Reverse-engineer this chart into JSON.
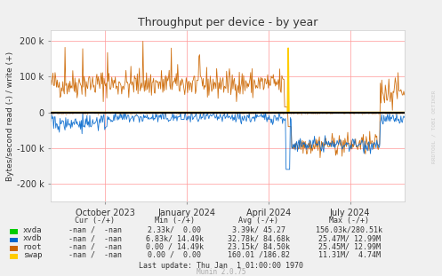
{
  "title": "Throughput per device - by year",
  "ylabel": "Bytes/second read (-) / write (+)",
  "background_color": "#f0f0f0",
  "plot_bg_color": "#ffffff",
  "grid_color": "#ff9999",
  "ylim": [
    -250000,
    230000
  ],
  "yticks": [
    -200000,
    -100000,
    0,
    100000,
    200000
  ],
  "ytick_labels": [
    "-200 k",
    "-100 k",
    "0",
    "100 k",
    "200 k"
  ],
  "xtick_labels": [
    "October 2023",
    "January 2024",
    "April 2024",
    "July 2024"
  ],
  "last_update": "Last update: Thu Jan  1 01:00:00 1970",
  "munin_version": "Munin 2.0.75",
  "watermark": "RRDTOOL / TOBI OETIKER",
  "rows": [
    {
      "label": "xvda",
      "color": "#00cc00",
      "cur": "-nan /  -nan",
      "min": "2.33k/  0.00",
      "avg": "3.39k/ 45.27",
      "max": "156.03k/280.51k"
    },
    {
      "label": "xvdb",
      "color": "#0066cc",
      "cur": "-nan /  -nan",
      "min": "6.83k/ 14.49k",
      "avg": "32.78k/ 84.68k",
      "max": "25.47M/ 12.99M"
    },
    {
      "label": "root",
      "color": "#cc6600",
      "cur": "-nan /  -nan",
      "min": "0.00 / 14.49k",
      "avg": "23.15k/ 84.50k",
      "max": "25.45M/ 12.99M"
    },
    {
      "label": "swap",
      "color": "#ffcc00",
      "cur": "-nan /  -nan",
      "min": "0.00 /  0.00",
      "avg": "160.01 /186.82",
      "max": "11.31M/  4.74M"
    }
  ]
}
